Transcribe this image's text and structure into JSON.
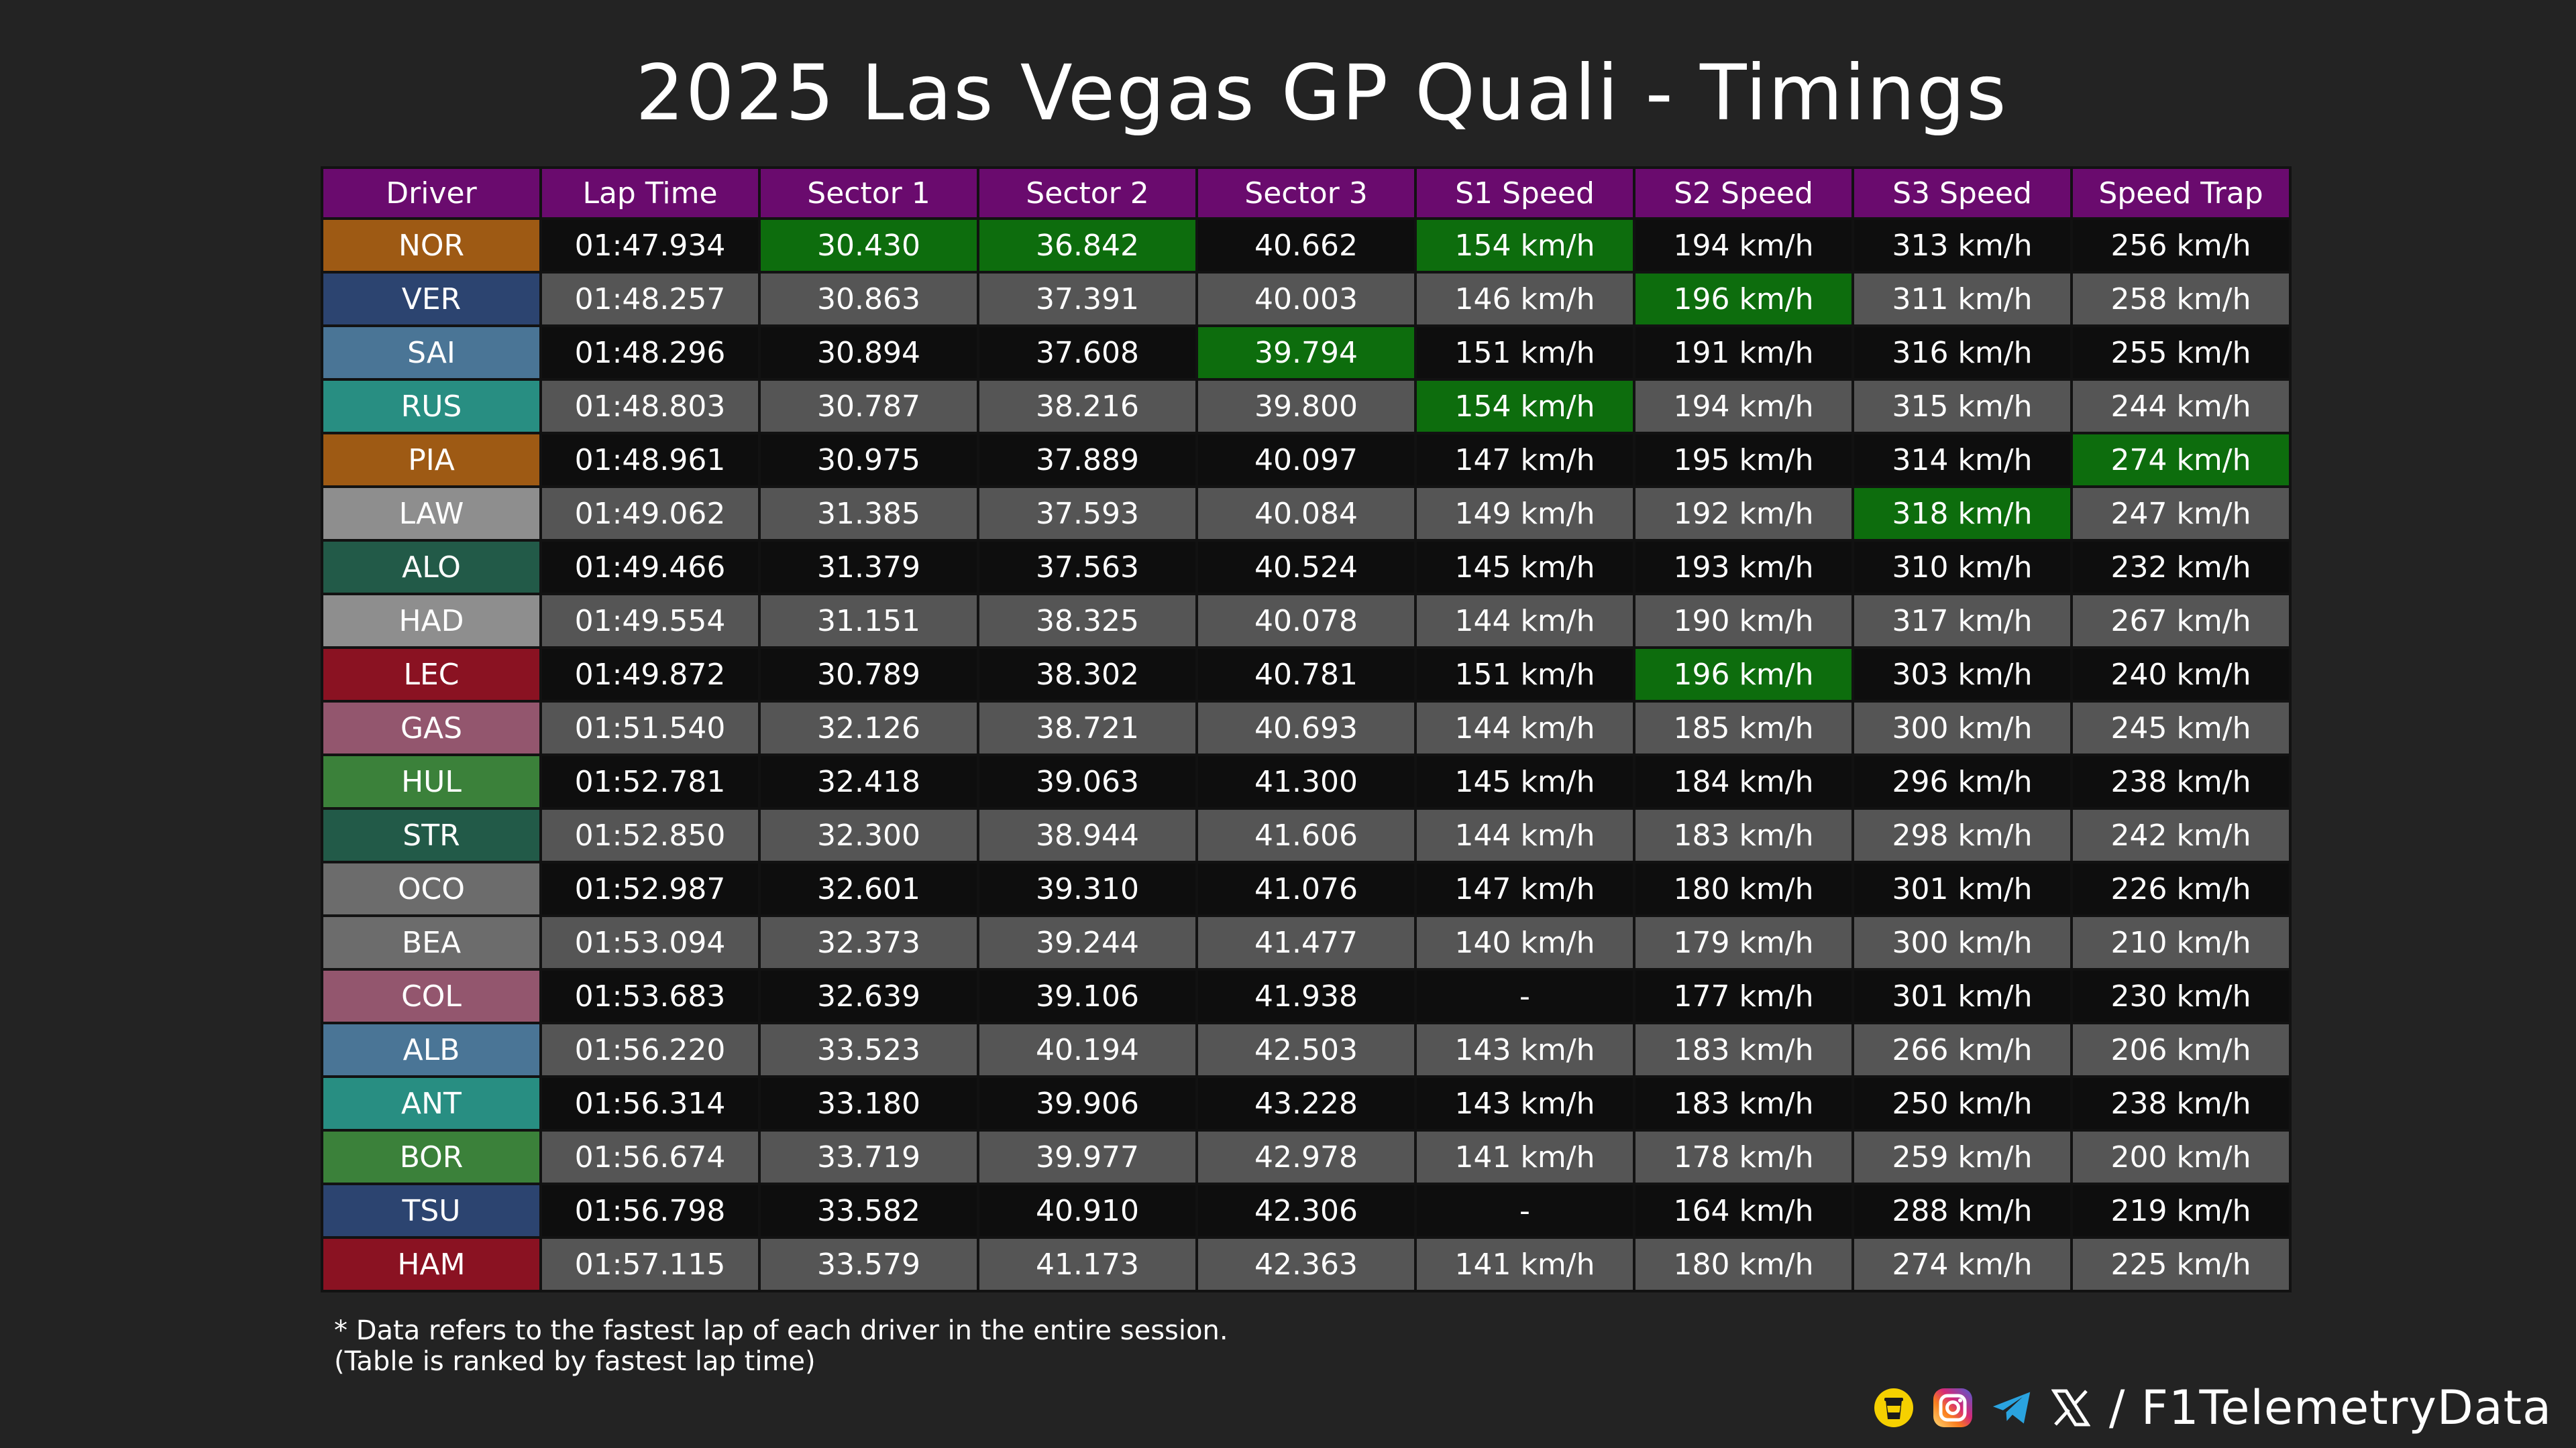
{
  "title": "2025 Las Vegas GP Quali - Timings",
  "watermark": "@F1TelemetryData",
  "chart_data": {
    "type": "table",
    "title": "2025 Las Vegas GP Quali - Timings",
    "columns": [
      "Driver",
      "Lap Time",
      "Sector 1",
      "Sector 2",
      "Sector 3",
      "S1 Speed",
      "S2 Speed",
      "S3 Speed",
      "Speed Trap"
    ],
    "rows": [
      {
        "driver": "NOR",
        "team_color": "#9e5a14",
        "cells": [
          "01:47.934",
          "30.430",
          "36.842",
          "40.662",
          "154 km/h",
          "194 km/h",
          "313 km/h",
          "256 km/h"
        ],
        "best": [
          1,
          2,
          4
        ]
      },
      {
        "driver": "VER",
        "team_color": "#2c4470",
        "cells": [
          "01:48.257",
          "30.863",
          "37.391",
          "40.003",
          "146 km/h",
          "196 km/h",
          "311 km/h",
          "258 km/h"
        ],
        "best": [
          5
        ]
      },
      {
        "driver": "SAI",
        "team_color": "#4a7596",
        "cells": [
          "01:48.296",
          "30.894",
          "37.608",
          "39.794",
          "151 km/h",
          "191 km/h",
          "316 km/h",
          "255 km/h"
        ],
        "best": [
          3
        ]
      },
      {
        "driver": "RUS",
        "team_color": "#288e82",
        "cells": [
          "01:48.803",
          "30.787",
          "38.216",
          "39.800",
          "154 km/h",
          "194 km/h",
          "315 km/h",
          "244 km/h"
        ],
        "best": [
          4
        ]
      },
      {
        "driver": "PIA",
        "team_color": "#9e5a14",
        "cells": [
          "01:48.961",
          "30.975",
          "37.889",
          "40.097",
          "147 km/h",
          "195 km/h",
          "314 km/h",
          "274 km/h"
        ],
        "best": [
          7
        ]
      },
      {
        "driver": "LAW",
        "team_color": "#8e8e8e",
        "cells": [
          "01:49.062",
          "31.385",
          "37.593",
          "40.084",
          "149 km/h",
          "192 km/h",
          "318 km/h",
          "247 km/h"
        ],
        "best": [
          6
        ]
      },
      {
        "driver": "ALO",
        "team_color": "#225a48",
        "cells": [
          "01:49.466",
          "31.379",
          "37.563",
          "40.524",
          "145 km/h",
          "193 km/h",
          "310 km/h",
          "232 km/h"
        ],
        "best": []
      },
      {
        "driver": "HAD",
        "team_color": "#8e8e8e",
        "cells": [
          "01:49.554",
          "31.151",
          "38.325",
          "40.078",
          "144 km/h",
          "190 km/h",
          "317 km/h",
          "267 km/h"
        ],
        "best": []
      },
      {
        "driver": "LEC",
        "team_color": "#8a1222",
        "cells": [
          "01:49.872",
          "30.789",
          "38.302",
          "40.781",
          "151 km/h",
          "196 km/h",
          "303 km/h",
          "240 km/h"
        ],
        "best": [
          5
        ]
      },
      {
        "driver": "GAS",
        "team_color": "#93566e",
        "cells": [
          "01:51.540",
          "32.126",
          "38.721",
          "40.693",
          "144 km/h",
          "185 km/h",
          "300 km/h",
          "245 km/h"
        ],
        "best": []
      },
      {
        "driver": "HUL",
        "team_color": "#3b813a",
        "cells": [
          "01:52.781",
          "32.418",
          "39.063",
          "41.300",
          "145 km/h",
          "184 km/h",
          "296 km/h",
          "238 km/h"
        ],
        "best": []
      },
      {
        "driver": "STR",
        "team_color": "#225a48",
        "cells": [
          "01:52.850",
          "32.300",
          "38.944",
          "41.606",
          "144 km/h",
          "183 km/h",
          "298 km/h",
          "242 km/h"
        ],
        "best": []
      },
      {
        "driver": "OCO",
        "team_color": "#6c6c6c",
        "cells": [
          "01:52.987",
          "32.601",
          "39.310",
          "41.076",
          "147 km/h",
          "180 km/h",
          "301 km/h",
          "226 km/h"
        ],
        "best": []
      },
      {
        "driver": "BEA",
        "team_color": "#6c6c6c",
        "cells": [
          "01:53.094",
          "32.373",
          "39.244",
          "41.477",
          "140 km/h",
          "179 km/h",
          "300 km/h",
          "210 km/h"
        ],
        "best": []
      },
      {
        "driver": "COL",
        "team_color": "#93566e",
        "cells": [
          "01:53.683",
          "32.639",
          "39.106",
          "41.938",
          "-",
          "177 km/h",
          "301 km/h",
          "230 km/h"
        ],
        "best": []
      },
      {
        "driver": "ALB",
        "team_color": "#4a7596",
        "cells": [
          "01:56.220",
          "33.523",
          "40.194",
          "42.503",
          "143 km/h",
          "183 km/h",
          "266 km/h",
          "206 km/h"
        ],
        "best": []
      },
      {
        "driver": "ANT",
        "team_color": "#288e82",
        "cells": [
          "01:56.314",
          "33.180",
          "39.906",
          "43.228",
          "143 km/h",
          "183 km/h",
          "250 km/h",
          "238 km/h"
        ],
        "best": []
      },
      {
        "driver": "BOR",
        "team_color": "#3b813a",
        "cells": [
          "01:56.674",
          "33.719",
          "39.977",
          "42.978",
          "141 km/h",
          "178 km/h",
          "259 km/h",
          "200 km/h"
        ],
        "best": []
      },
      {
        "driver": "TSU",
        "team_color": "#2c4470",
        "cells": [
          "01:56.798",
          "33.582",
          "40.910",
          "42.306",
          "-",
          "164 km/h",
          "288 km/h",
          "219 km/h"
        ],
        "best": []
      },
      {
        "driver": "HAM",
        "team_color": "#8a1222",
        "cells": [
          "01:57.115",
          "33.579",
          "41.173",
          "42.363",
          "141 km/h",
          "180 km/h",
          "274 km/h",
          "225 km/h"
        ],
        "best": []
      }
    ],
    "highlight_color": "#0d6d0d"
  },
  "footnote": {
    "line1": "* Data refers to the fastest lap of each driver in the entire session.",
    "line2": "(Table is ranked by fastest lap time)"
  },
  "brand": {
    "handle": "/ F1TelemetryData",
    "icons": [
      "buymeacoffee-icon",
      "instagram-icon",
      "telegram-icon",
      "x-icon"
    ]
  }
}
